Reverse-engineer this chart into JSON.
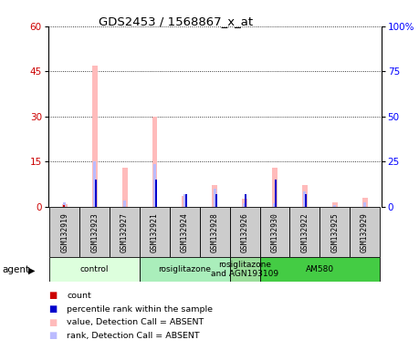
{
  "title": "GDS2453 / 1568867_x_at",
  "samples": [
    "GSM132919",
    "GSM132923",
    "GSM132927",
    "GSM132921",
    "GSM132924",
    "GSM132928",
    "GSM132926",
    "GSM132930",
    "GSM132922",
    "GSM132925",
    "GSM132929"
  ],
  "count_values": [
    0.5,
    0,
    0,
    0,
    0,
    0,
    0,
    0,
    0,
    0,
    0
  ],
  "percentile_values": [
    0,
    9,
    0,
    9,
    4,
    4,
    4,
    9,
    4,
    0,
    0
  ],
  "absent_value_bars": [
    0.8,
    47,
    13,
    30,
    3.5,
    7,
    2.5,
    13,
    7,
    1.5,
    3
  ],
  "absent_rank_bars": [
    1.5,
    15,
    2,
    14,
    4,
    6,
    1,
    1,
    5,
    0.5,
    1.5
  ],
  "ylim_left": [
    0,
    60
  ],
  "ylim_right": [
    0,
    100
  ],
  "yticks_left": [
    0,
    15,
    30,
    45,
    60
  ],
  "yticks_right": [
    0,
    25,
    50,
    75,
    100
  ],
  "yticklabels_right": [
    "0",
    "25",
    "50",
    "75",
    "100%"
  ],
  "groups": [
    {
      "label": "control",
      "start": 0,
      "end": 3,
      "color": "#ddffdd"
    },
    {
      "label": "rosiglitazone",
      "start": 3,
      "end": 6,
      "color": "#aaeebb"
    },
    {
      "label": "rosiglitazone\nand AGN193109",
      "start": 6,
      "end": 7,
      "color": "#99dd99"
    },
    {
      "label": "AM580",
      "start": 7,
      "end": 11,
      "color": "#44cc44"
    }
  ],
  "color_count": "#cc0000",
  "color_percentile": "#0000cc",
  "color_absent_value": "#ffbbbb",
  "color_absent_rank": "#bbbbff",
  "legend_items": [
    {
      "color": "#cc0000",
      "label": "count"
    },
    {
      "color": "#0000cc",
      "label": "percentile rank within the sample"
    },
    {
      "color": "#ffbbbb",
      "label": "value, Detection Call = ABSENT"
    },
    {
      "color": "#bbbbff",
      "label": "rank, Detection Call = ABSENT"
    }
  ]
}
